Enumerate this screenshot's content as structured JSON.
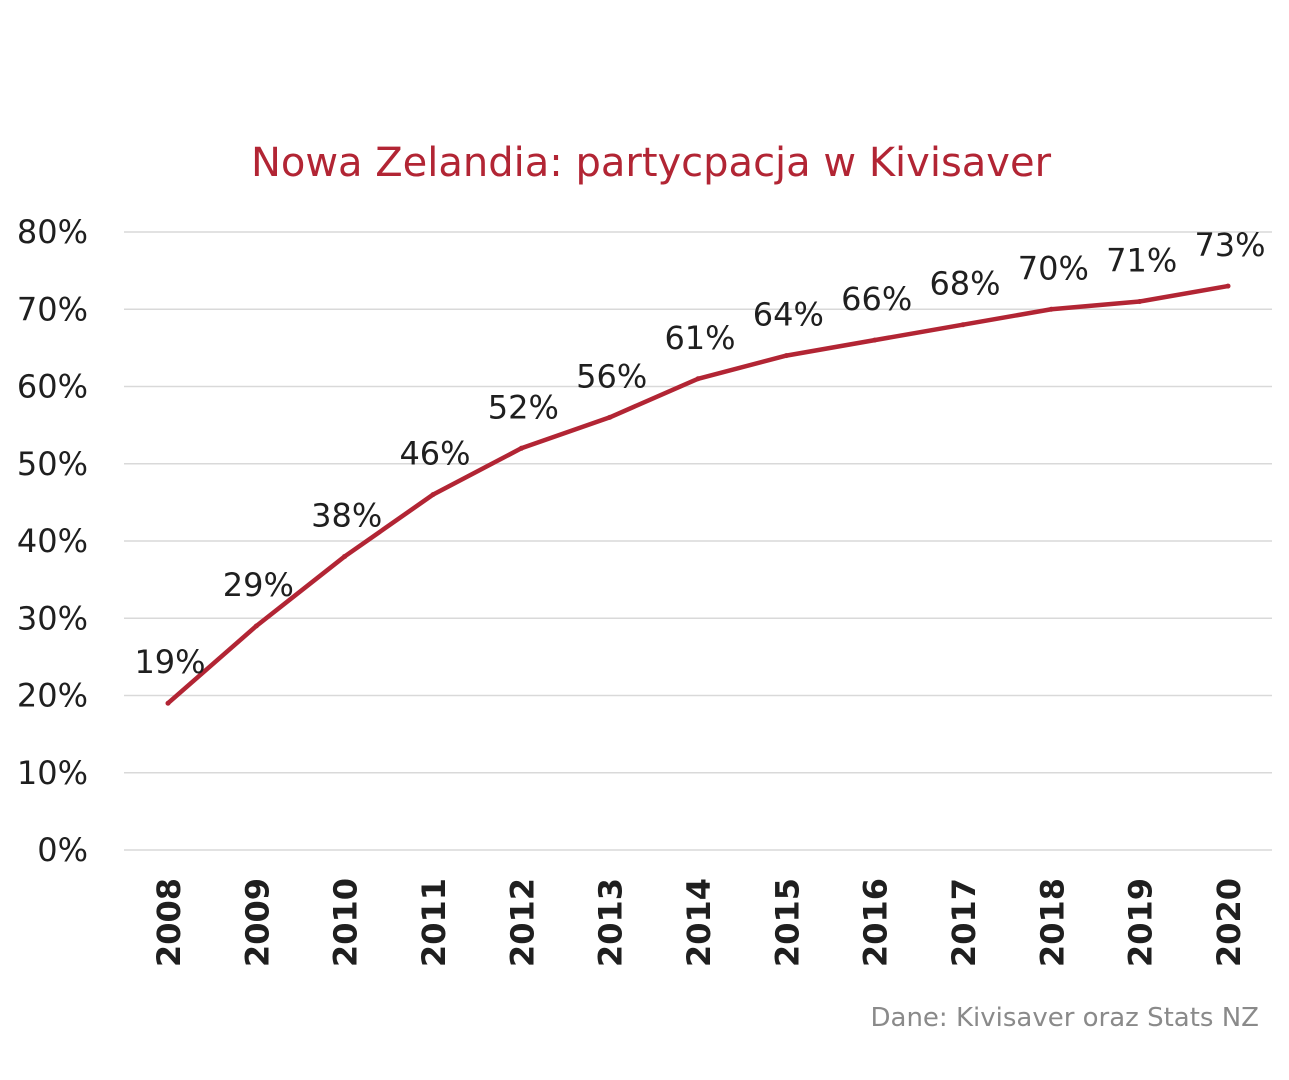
{
  "chart_data": {
    "type": "line",
    "title": "Nowa Zelandia: partycpacja w Kivisaver",
    "categories": [
      "2008",
      "2009",
      "2010",
      "2011",
      "2012",
      "2013",
      "2014",
      "2015",
      "2016",
      "2017",
      "2018",
      "2019",
      "2020"
    ],
    "series": [
      {
        "values": [
          19,
          29,
          38,
          46,
          52,
          56,
          61,
          64,
          66,
          68,
          70,
          71,
          73
        ],
        "labels": [
          "19%",
          "29%",
          "38%",
          "46%",
          "52%",
          "56%",
          "61%",
          "64%",
          "66%",
          "68%",
          "70%",
          "71%",
          "73%"
        ],
        "color": "#b22534"
      }
    ],
    "yticks": [
      "0%",
      "10%",
      "20%",
      "30%",
      "40%",
      "50%",
      "60%",
      "70%",
      "80%"
    ],
    "ylim": [
      0,
      80
    ],
    "grid": true,
    "legend": "none"
  },
  "source": "Dane: Kivisaver oraz Stats NZ"
}
